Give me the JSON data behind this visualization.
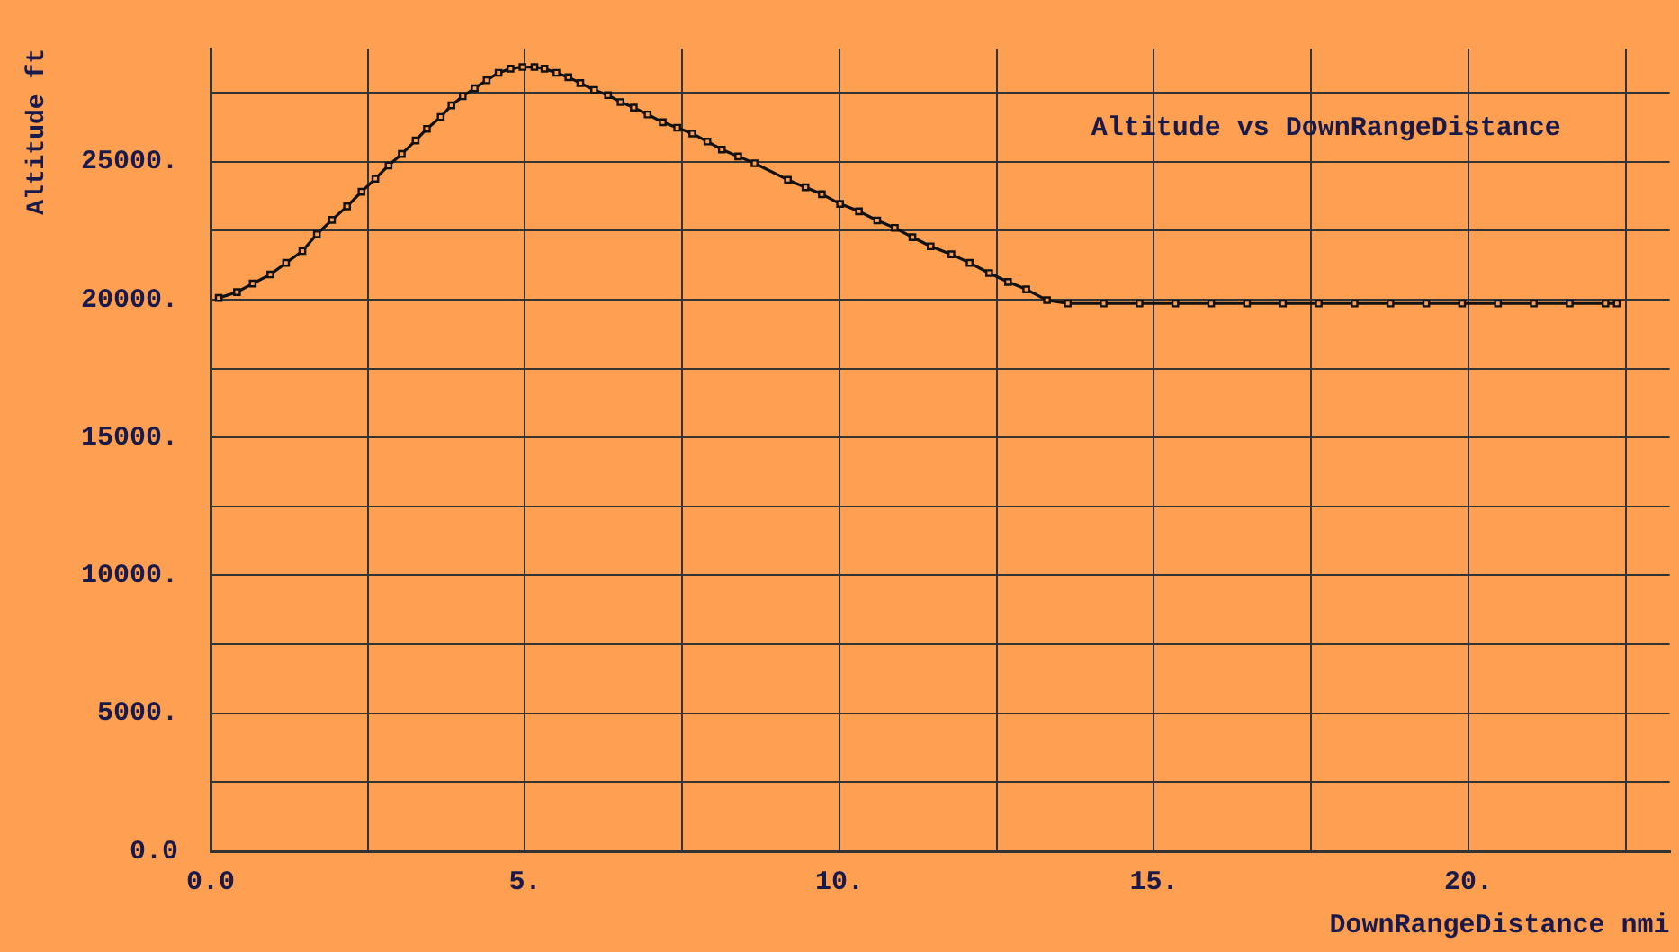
{
  "chart_data": {
    "type": "line",
    "title": "Altitude vs DownRangeDistance",
    "xlabel": "DownRangeDistance nmi",
    "ylabel": "Altitude ft",
    "x": [
      0.13,
      0.42,
      0.67,
      0.95,
      1.2,
      1.46,
      1.69,
      1.93,
      2.17,
      2.4,
      2.62,
      2.83,
      3.04,
      3.26,
      3.44,
      3.66,
      3.83,
      4.01,
      4.2,
      4.39,
      4.58,
      4.77,
      4.96,
      5.15,
      5.31,
      5.5,
      5.69,
      5.88,
      6.1,
      6.32,
      6.52,
      6.73,
      6.95,
      7.19,
      7.42,
      7.66,
      7.9,
      8.13,
      8.39,
      8.65,
      9.18,
      9.46,
      9.72,
      10.01,
      10.31,
      10.6,
      10.88,
      11.16,
      11.45,
      11.78,
      12.07,
      12.38,
      12.68,
      12.97,
      13.3,
      13.63,
      14.2,
      14.77,
      15.34,
      15.91,
      16.48,
      17.05,
      17.62,
      18.19,
      18.76,
      19.33,
      19.9,
      20.47,
      21.04,
      21.61,
      22.18,
      22.36
    ],
    "series": [
      {
        "color": "#111111",
        "values": [
          20060,
          20270,
          20580,
          20910,
          21330,
          21760,
          22370,
          22890,
          23380,
          23910,
          24380,
          24860,
          25280,
          25770,
          26190,
          26620,
          27040,
          27370,
          27660,
          27950,
          28220,
          28370,
          28430,
          28430,
          28370,
          28220,
          28060,
          27850,
          27600,
          27410,
          27160,
          26960,
          26710,
          26430,
          26230,
          26020,
          25730,
          25440,
          25190,
          24940,
          24340,
          24070,
          23820,
          23470,
          23200,
          22870,
          22600,
          22260,
          21930,
          21640,
          21330,
          20960,
          20640,
          20370,
          19980,
          19860,
          19860,
          19860,
          19860,
          19860,
          19860,
          19860,
          19860,
          19860,
          19860,
          19860,
          19860,
          19860,
          19860,
          19860,
          19860,
          19860
        ]
      }
    ],
    "xlim": [
      0,
      23.2
    ],
    "xticks": [
      {
        "value": 0,
        "label": "0.0"
      },
      {
        "value": 2.5,
        "label": null
      },
      {
        "value": 5,
        "label": "5."
      },
      {
        "value": 7.5,
        "label": null
      },
      {
        "value": 10,
        "label": "10."
      },
      {
        "value": 12.5,
        "label": null
      },
      {
        "value": 15,
        "label": "15."
      },
      {
        "value": 17.5,
        "label": null
      },
      {
        "value": 20,
        "label": "20."
      },
      {
        "value": 22.5,
        "label": null
      }
    ],
    "ylim": [
      0,
      29100
    ],
    "yticks": [
      {
        "value": 0,
        "label": "0.0"
      },
      {
        "value": 2500,
        "label": null
      },
      {
        "value": 5000,
        "label": "5000."
      },
      {
        "value": 7500,
        "label": null
      },
      {
        "value": 10000,
        "label": "10000."
      },
      {
        "value": 12500,
        "label": null
      },
      {
        "value": 15000,
        "label": "15000."
      },
      {
        "value": 17500,
        "label": null
      },
      {
        "value": 20000,
        "label": "20000."
      },
      {
        "value": 22500,
        "label": null
      },
      {
        "value": 25000,
        "label": "25000."
      },
      {
        "value": 27500,
        "label": null
      }
    ],
    "grid": true,
    "marker": "square",
    "line_style": "solid",
    "legend": false
  }
}
